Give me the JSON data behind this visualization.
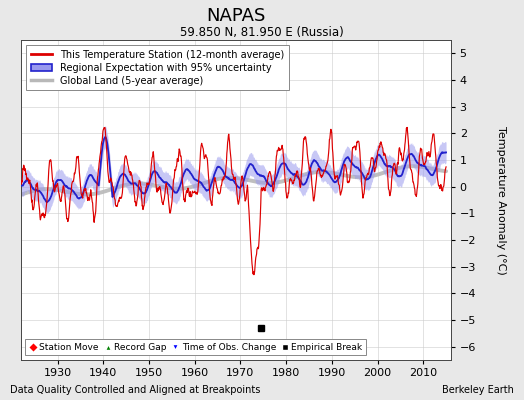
{
  "title": "NAPAS",
  "subtitle": "59.850 N, 81.950 E (Russia)",
  "ylabel": "Temperature Anomaly (°C)",
  "xlabel_bottom": "Data Quality Controlled and Aligned at Breakpoints",
  "xlabel_right": "Berkeley Earth",
  "ylim": [
    -6.5,
    5.5
  ],
  "yticks": [
    -6,
    -5,
    -4,
    -3,
    -2,
    -1,
    0,
    1,
    2,
    3,
    4,
    5
  ],
  "xlim": [
    1922,
    2016
  ],
  "xticks": [
    1930,
    1940,
    1950,
    1960,
    1970,
    1980,
    1990,
    2000,
    2010
  ],
  "background_color": "#e8e8e8",
  "plot_bg_color": "#ffffff",
  "red_color": "#dd0000",
  "blue_color": "#2222cc",
  "blue_fill_color": "#9999ee",
  "gray_color": "#b8b8b8",
  "empirical_break_x": 1974.5,
  "empirical_break_y": -5.3,
  "fig_width": 5.24,
  "fig_height": 4.0,
  "dpi": 100
}
